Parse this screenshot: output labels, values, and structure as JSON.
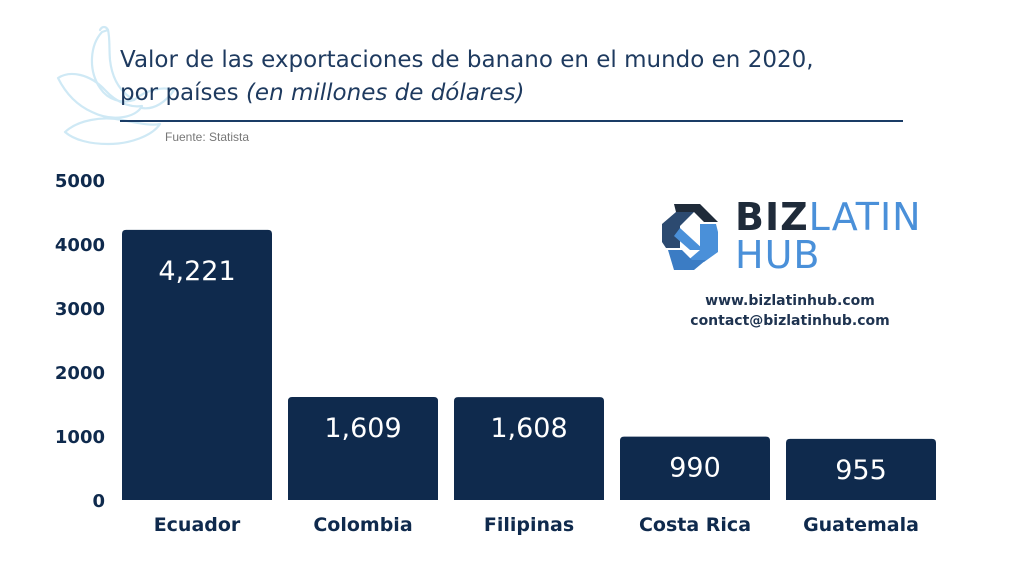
{
  "title": {
    "line1": "Valor de las exportaciones de banano en el mundo en 2020,",
    "line2": "por países ",
    "line2_italic": "(en millones de dólares)"
  },
  "source": "Fuente: Statista",
  "brand": {
    "biz": "BIZ",
    "latin": "LATIN",
    "hub": "HUB",
    "logo_icon": "bizlatinhub-logo-icon"
  },
  "contact": {
    "web": "www.bizlatinhub.com",
    "email": "contact@bizlatinhub.com"
  },
  "colors": {
    "bar": "#0f2a4d",
    "title": "#1e3a5f",
    "accent": "#4a90d9",
    "decoration": "#cfe9f5"
  },
  "chart_data": {
    "type": "bar",
    "title": "Valor de las exportaciones de banano en el mundo en 2020, por países (en millones de dólares)",
    "categories": [
      "Ecuador",
      "Colombia",
      "Filipinas",
      "Costa Rica",
      "Guatemala"
    ],
    "values": [
      4221,
      1609,
      1608,
      990,
      955
    ],
    "value_labels": [
      "4,221",
      "1,609",
      "1,608",
      "990",
      "955"
    ],
    "yticks": [
      "0",
      "1000",
      "2000",
      "3000",
      "4000",
      "5000"
    ],
    "ylim": [
      0,
      5000
    ],
    "xlabel": "",
    "ylabel": "",
    "grid": false,
    "legend": "none"
  }
}
